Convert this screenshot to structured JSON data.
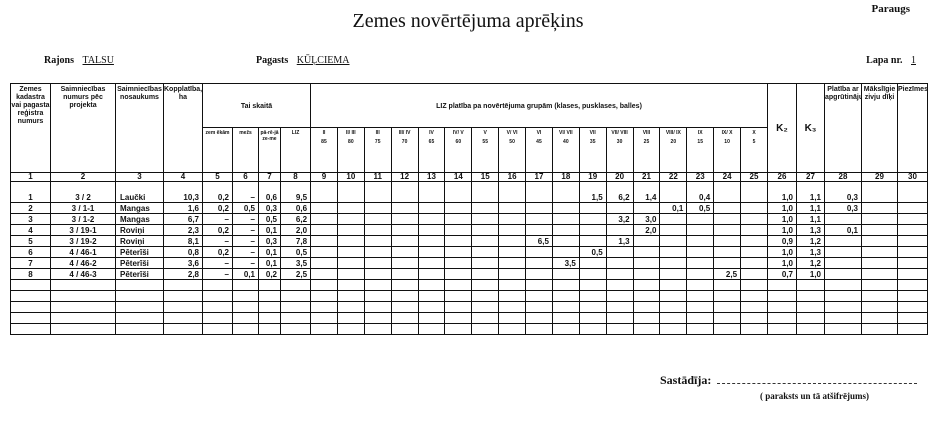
{
  "header": {
    "corner_label": "Paraugs",
    "title": "Zemes novērtējuma aprēķins",
    "rajons_label": "Rajons",
    "rajons_value": "TALSU",
    "pagasts_label": "Pagasts",
    "pagasts_value": "KŪĻCIEMA",
    "lapa_label": "Lapa nr.",
    "lapa_value": "1"
  },
  "table": {
    "col_headers": {
      "c1": "Zemes kadastra vai pagasta reģistra numurs",
      "c2": "Saimniecības numurs pēc projekta",
      "c3": "Saimniecības nosaukums",
      "c4": "Kopplatība, ha",
      "tai_skaita": "Tai skaitā",
      "c5": "zem ēkām",
      "c6": "mežs",
      "c7": "pā-rē-jā ze-me",
      "c8": "LIZ",
      "liz_group": "LIZ platība pa novērtējuma grupām (klases, pusklases, balles)",
      "groups": [
        {
          "cls": "II",
          "pts": "85"
        },
        {
          "cls": "II/ III",
          "pts": "80"
        },
        {
          "cls": "III",
          "pts": "75"
        },
        {
          "cls": "III/ IV",
          "pts": "70"
        },
        {
          "cls": "IV",
          "pts": "65"
        },
        {
          "cls": "IV/ V",
          "pts": "60"
        },
        {
          "cls": "V",
          "pts": "55"
        },
        {
          "cls": "V/ VI",
          "pts": "50"
        },
        {
          "cls": "VI",
          "pts": "45"
        },
        {
          "cls": "VI/ VII",
          "pts": "40"
        },
        {
          "cls": "VII",
          "pts": "35"
        },
        {
          "cls": "VII/ VIII",
          "pts": "30"
        },
        {
          "cls": "VIII",
          "pts": "25"
        },
        {
          "cls": "VIII/ IX",
          "pts": "20"
        },
        {
          "cls": "IX",
          "pts": "15"
        },
        {
          "cls": "IX/ X",
          "pts": "10"
        },
        {
          "cls": "X",
          "pts": "5"
        }
      ],
      "c26": "K₂",
      "c27": "K₃",
      "c28": "Platība ar apgrūtinājumu",
      "c29": "Mākslīgie zivju dīķi",
      "c30": "Piezīmes"
    },
    "col_numbers": [
      "1",
      "2",
      "3",
      "4",
      "5",
      "6",
      "7",
      "8",
      "9",
      "10",
      "11",
      "12",
      "13",
      "14",
      "15",
      "16",
      "17",
      "18",
      "19",
      "20",
      "21",
      "22",
      "23",
      "24",
      "25",
      "26",
      "27",
      "28",
      "29",
      "30"
    ],
    "rows": [
      {
        "cells": [
          "1",
          "3 / 2",
          "Laučki",
          "10,3",
          "0,2",
          "–",
          "0,6",
          "9,5",
          "",
          "",
          "",
          "",
          "",
          "",
          "",
          "",
          "",
          "",
          "1,5",
          "6,2",
          "1,4",
          "",
          "0,4",
          "",
          "",
          "1,0",
          "1,1",
          "0,3",
          "",
          ""
        ]
      },
      {
        "cells": [
          "2",
          "3 / 1-1",
          "Mangas",
          "1,6",
          "0,2",
          "0,5",
          "0,3",
          "0,6",
          "",
          "",
          "",
          "",
          "",
          "",
          "",
          "",
          "",
          "",
          "",
          "",
          "",
          "0,1",
          "0,5",
          "",
          "",
          "1,0",
          "1,1",
          "0,3",
          "",
          ""
        ]
      },
      {
        "cells": [
          "3",
          "3 / 1-2",
          "Mangas",
          "6,7",
          "–",
          "–",
          "0,5",
          "6,2",
          "",
          "",
          "",
          "",
          "",
          "",
          "",
          "",
          "",
          "",
          "",
          "3,2",
          "3,0",
          "",
          "",
          "",
          "",
          "1,0",
          "1,1",
          "",
          "",
          ""
        ]
      },
      {
        "cells": [
          "4",
          "3 / 19-1",
          "Roviņi",
          "2,3",
          "0,2",
          "–",
          "0,1",
          "2,0",
          "",
          "",
          "",
          "",
          "",
          "",
          "",
          "",
          "",
          "",
          "",
          "",
          "2,0",
          "",
          "",
          "",
          "",
          "1,0",
          "1,3",
          "0,1",
          "",
          ""
        ]
      },
      {
        "cells": [
          "5",
          "3 / 19-2",
          "Roviņi",
          "8,1",
          "–",
          "–",
          "0,3",
          "7,8",
          "",
          "",
          "",
          "",
          "",
          "",
          "",
          "",
          "6,5",
          "",
          "",
          "1,3",
          "",
          "",
          "",
          "",
          "",
          "0,9",
          "1,2",
          "",
          "",
          ""
        ]
      },
      {
        "cells": [
          "6",
          "4 / 46-1",
          "Pēterīši",
          "0,8",
          "0,2",
          "–",
          "0,1",
          "0,5",
          "",
          "",
          "",
          "",
          "",
          "",
          "",
          "",
          "",
          "",
          "0,5",
          "",
          "",
          "",
          "",
          "",
          "",
          "1,0",
          "1,3",
          "",
          "",
          ""
        ]
      },
      {
        "cells": [
          "7",
          "4 / 46-2",
          "Pēterīši",
          "3,6",
          "–",
          "–",
          "0,1",
          "3,5",
          "",
          "",
          "",
          "",
          "",
          "",
          "",
          "",
          "",
          "3,5",
          "",
          "",
          "",
          "",
          "",
          "",
          "",
          "1,0",
          "1,2",
          "",
          "",
          ""
        ]
      },
      {
        "cells": [
          "8",
          "4 / 46-3",
          "Pēterīši",
          "2,8",
          "–",
          "0,1",
          "0,2",
          "2,5",
          "",
          "",
          "",
          "",
          "",
          "",
          "",
          "",
          "",
          "",
          "",
          "",
          "",
          "",
          "",
          "2,5",
          "",
          "0,7",
          "1,0",
          "",
          "",
          ""
        ]
      }
    ],
    "empty_rows": 5
  },
  "footer": {
    "compiled_label": "Sastādīja:",
    "signature_note": "( paraksts un tā atšifrējums)"
  }
}
